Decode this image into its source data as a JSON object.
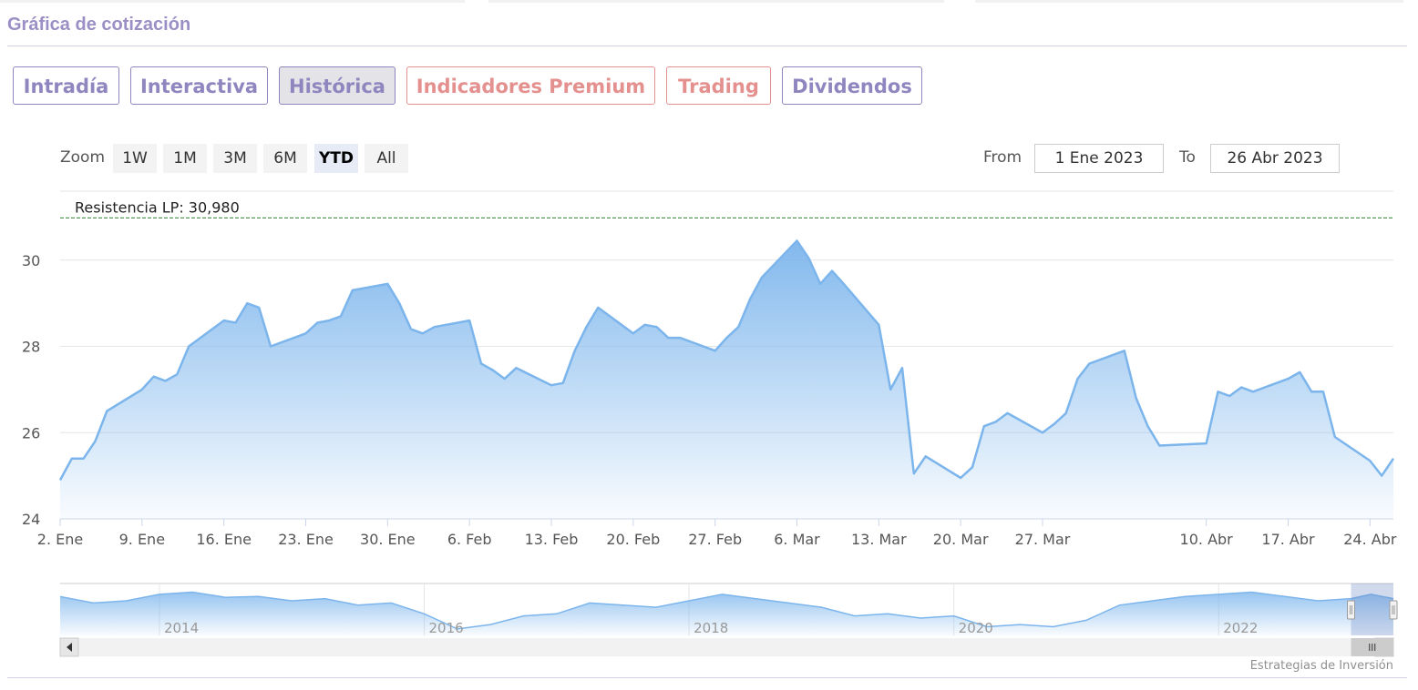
{
  "section_title": "Gráfica de cotización",
  "tabs": [
    {
      "label": "Intradía"
    },
    {
      "label": "Interactiva"
    },
    {
      "label": "Histórica"
    },
    {
      "label": "Indicadores Premium"
    },
    {
      "label": "Trading"
    },
    {
      "label": "Dividendos"
    }
  ],
  "active_tab": "Histórica",
  "zoom": {
    "label": "Zoom",
    "buttons": [
      "1W",
      "1M",
      "3M",
      "6M",
      "YTD",
      "All"
    ],
    "selected": "YTD"
  },
  "range": {
    "from_label": "From",
    "from_value": "1 Ene 2023",
    "to_label": "To",
    "to_value": "26 Abr 2023"
  },
  "credit": "Estrategias de Inversión",
  "colors": {
    "accent": "#8f86bf",
    "premium": "#e4908f",
    "line": "#7cb5ec",
    "resistance": "#2f7d32"
  },
  "icons": {
    "scroll_left": "triangle-left-icon",
    "scroll_right": "triangle-right-icon",
    "handle_grip": "grip-icon"
  },
  "chart_data": {
    "type": "area",
    "ylim": [
      24,
      31.6
    ],
    "y_ticks": [
      "24",
      "26",
      "28",
      "30"
    ],
    "x_tick_labels": [
      "2. Ene",
      "9. Ene",
      "16. Ene",
      "23. Ene",
      "30. Ene",
      "6. Feb",
      "13. Feb",
      "20. Feb",
      "27. Feb",
      "6. Mar",
      "13. Mar",
      "20. Mar",
      "27. Mar",
      "10. Abr",
      "17. Abr",
      "24. Abr"
    ],
    "x_tick_dates": [
      "2023-01-02",
      "2023-01-09",
      "2023-01-16",
      "2023-01-23",
      "2023-01-30",
      "2023-02-06",
      "2023-02-13",
      "2023-02-20",
      "2023-02-27",
      "2023-03-06",
      "2023-03-13",
      "2023-03-20",
      "2023-03-27",
      "2023-04-10",
      "2023-04-17",
      "2023-04-24"
    ],
    "x_range": [
      "2023-01-02",
      "2023-04-26"
    ],
    "resistance": {
      "label": "Resistencia LP: 30,980",
      "value": 30.98
    },
    "series": [
      {
        "points": [
          [
            "2023-01-02",
            24.9
          ],
          [
            "2023-01-03",
            25.4
          ],
          [
            "2023-01-04",
            25.4
          ],
          [
            "2023-01-05",
            25.8
          ],
          [
            "2023-01-06",
            26.5
          ],
          [
            "2023-01-09",
            27.0
          ],
          [
            "2023-01-10",
            27.3
          ],
          [
            "2023-01-11",
            27.2
          ],
          [
            "2023-01-12",
            27.35
          ],
          [
            "2023-01-13",
            28.0
          ],
          [
            "2023-01-16",
            28.6
          ],
          [
            "2023-01-17",
            28.55
          ],
          [
            "2023-01-18",
            29.0
          ],
          [
            "2023-01-19",
            28.9
          ],
          [
            "2023-01-20",
            28.0
          ],
          [
            "2023-01-23",
            28.3
          ],
          [
            "2023-01-24",
            28.55
          ],
          [
            "2023-01-25",
            28.6
          ],
          [
            "2023-01-26",
            28.7
          ],
          [
            "2023-01-27",
            29.3
          ],
          [
            "2023-01-30",
            29.45
          ],
          [
            "2023-01-31",
            29.0
          ],
          [
            "2023-02-01",
            28.4
          ],
          [
            "2023-02-02",
            28.3
          ],
          [
            "2023-02-03",
            28.45
          ],
          [
            "2023-02-06",
            28.6
          ],
          [
            "2023-02-07",
            27.6
          ],
          [
            "2023-02-08",
            27.45
          ],
          [
            "2023-02-09",
            27.25
          ],
          [
            "2023-02-10",
            27.5
          ],
          [
            "2023-02-13",
            27.1
          ],
          [
            "2023-02-14",
            27.15
          ],
          [
            "2023-02-15",
            27.9
          ],
          [
            "2023-02-16",
            28.45
          ],
          [
            "2023-02-17",
            28.9
          ],
          [
            "2023-02-20",
            28.3
          ],
          [
            "2023-02-21",
            28.5
          ],
          [
            "2023-02-22",
            28.45
          ],
          [
            "2023-02-23",
            28.2
          ],
          [
            "2023-02-24",
            28.2
          ],
          [
            "2023-02-27",
            27.9
          ],
          [
            "2023-02-28",
            28.2
          ],
          [
            "2023-03-01",
            28.45
          ],
          [
            "2023-03-02",
            29.1
          ],
          [
            "2023-03-03",
            29.6
          ],
          [
            "2023-03-06",
            30.45
          ],
          [
            "2023-03-07",
            30.05
          ],
          [
            "2023-03-08",
            29.45
          ],
          [
            "2023-03-09",
            29.75
          ],
          [
            "2023-03-10",
            29.45
          ],
          [
            "2023-03-13",
            28.5
          ],
          [
            "2023-03-14",
            27.0
          ],
          [
            "2023-03-15",
            27.5
          ],
          [
            "2023-03-16",
            25.05
          ],
          [
            "2023-03-17",
            25.45
          ],
          [
            "2023-03-20",
            24.95
          ],
          [
            "2023-03-21",
            25.2
          ],
          [
            "2023-03-22",
            26.15
          ],
          [
            "2023-03-23",
            26.25
          ],
          [
            "2023-03-24",
            26.45
          ],
          [
            "2023-03-27",
            26.0
          ],
          [
            "2023-03-28",
            26.2
          ],
          [
            "2023-03-29",
            26.45
          ],
          [
            "2023-03-30",
            27.25
          ],
          [
            "2023-03-31",
            27.6
          ],
          [
            "2023-04-03",
            27.9
          ],
          [
            "2023-04-04",
            26.8
          ],
          [
            "2023-04-05",
            26.15
          ],
          [
            "2023-04-06",
            25.7
          ],
          [
            "2023-04-10",
            25.75
          ],
          [
            "2023-04-11",
            26.95
          ],
          [
            "2023-04-12",
            26.85
          ],
          [
            "2023-04-13",
            27.05
          ],
          [
            "2023-04-14",
            26.95
          ],
          [
            "2023-04-17",
            27.25
          ],
          [
            "2023-04-18",
            27.4
          ],
          [
            "2023-04-19",
            26.95
          ],
          [
            "2023-04-20",
            26.95
          ],
          [
            "2023-04-21",
            25.9
          ],
          [
            "2023-04-24",
            25.35
          ],
          [
            "2023-04-25",
            25.0
          ],
          [
            "2023-04-26",
            25.4
          ]
        ]
      }
    ],
    "navigator": {
      "year_labels": [
        "2014",
        "2016",
        "2018",
        "2020",
        "2022"
      ],
      "year_starts": [
        2014,
        2016,
        2018,
        2020,
        2022
      ],
      "x_range": [
        2013.25,
        2023.32
      ],
      "window": [
        2023.0,
        2023.32
      ],
      "ylim": [
        20,
        32
      ],
      "points": [
        [
          2013.25,
          29.0
        ],
        [
          2013.5,
          27.5
        ],
        [
          2013.75,
          28.0
        ],
        [
          2014.0,
          29.5
        ],
        [
          2014.25,
          30.0
        ],
        [
          2014.5,
          28.8
        ],
        [
          2014.75,
          29.0
        ],
        [
          2015.0,
          28.0
        ],
        [
          2015.25,
          28.5
        ],
        [
          2015.5,
          27.0
        ],
        [
          2015.75,
          27.5
        ],
        [
          2016.0,
          25.0
        ],
        [
          2016.25,
          21.5
        ],
        [
          2016.5,
          22.5
        ],
        [
          2016.75,
          24.5
        ],
        [
          2017.0,
          25.0
        ],
        [
          2017.25,
          27.5
        ],
        [
          2017.5,
          27.0
        ],
        [
          2017.75,
          26.5
        ],
        [
          2018.0,
          28.0
        ],
        [
          2018.25,
          29.5
        ],
        [
          2018.5,
          28.5
        ],
        [
          2018.75,
          27.5
        ],
        [
          2019.0,
          26.5
        ],
        [
          2019.25,
          24.5
        ],
        [
          2019.5,
          25.0
        ],
        [
          2019.75,
          24.0
        ],
        [
          2020.0,
          24.5
        ],
        [
          2020.25,
          22.0
        ],
        [
          2020.5,
          22.5
        ],
        [
          2020.75,
          22.0
        ],
        [
          2021.0,
          23.5
        ],
        [
          2021.25,
          27.0
        ],
        [
          2021.5,
          28.0
        ],
        [
          2021.75,
          29.0
        ],
        [
          2022.0,
          29.5
        ],
        [
          2022.25,
          30.0
        ],
        [
          2022.5,
          29.0
        ],
        [
          2022.75,
          28.0
        ],
        [
          2023.0,
          28.5
        ],
        [
          2023.15,
          29.5
        ],
        [
          2023.32,
          28.5
        ]
      ]
    }
  }
}
